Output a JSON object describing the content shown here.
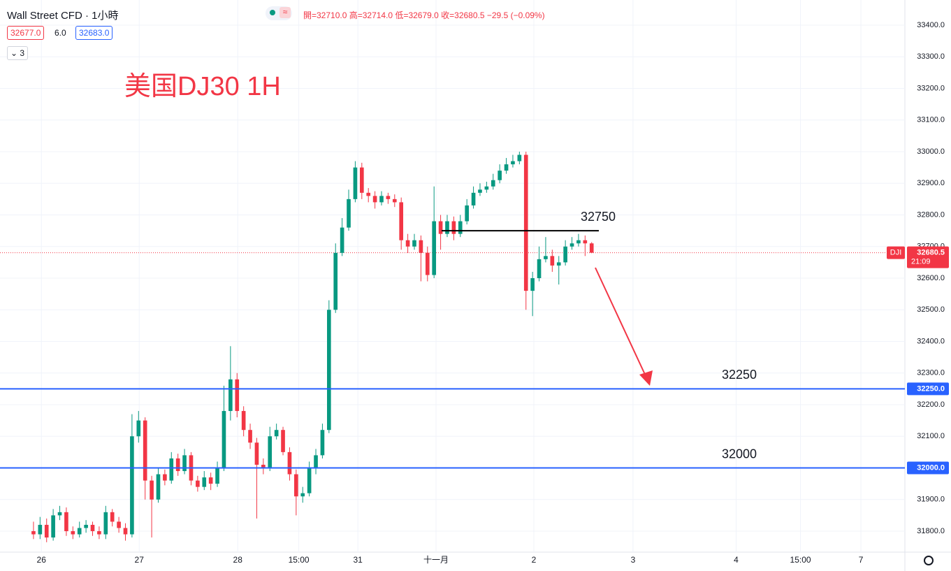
{
  "header": {
    "symbol": "Wall Street CFD · 1小時",
    "bid": "32677.0",
    "spread": "6.0",
    "ask": "32683.0",
    "indicators_count": "3",
    "ohlc": "開=32710.0 高=32714.0 低=32679.0 收=32680.5 −29.5 (−0.09%)"
  },
  "chart_data": {
    "type": "candlestick",
    "annotation": "美国DJ30 1H",
    "x": [
      0,
      1,
      2,
      3,
      4,
      5,
      6,
      7,
      8,
      9,
      10,
      11,
      12,
      13,
      14,
      15,
      16,
      17,
      18,
      19,
      20,
      21,
      22,
      23,
      24,
      25,
      26,
      27,
      28,
      29,
      30,
      31,
      32,
      33,
      34,
      35,
      36,
      37,
      38,
      39,
      40,
      41,
      42,
      43,
      44,
      45,
      46,
      47,
      48,
      49,
      50,
      51,
      52,
      53,
      54,
      55,
      56,
      57,
      58,
      59,
      60,
      61,
      62,
      63,
      64,
      65,
      66,
      67,
      68,
      69,
      70,
      71,
      72,
      73,
      74,
      75,
      76,
      77,
      78,
      79,
      80,
      81,
      82,
      83,
      84,
      85
    ],
    "open": [
      31800,
      31790,
      31820,
      31780,
      31850,
      31860,
      31800,
      31790,
      31810,
      31820,
      31800,
      31790,
      31860,
      31830,
      31810,
      31790,
      32100,
      32150,
      31960,
      31900,
      31980,
      31960,
      32030,
      31990,
      32040,
      31960,
      31940,
      31970,
      31950,
      32000,
      32180,
      32280,
      32180,
      32120,
      32080,
      32010,
      32000,
      32100,
      32120,
      32050,
      31980,
      31910,
      31920,
      32000,
      32040,
      32120,
      32500,
      32680,
      32760,
      32850,
      32950,
      32870,
      32860,
      32840,
      32860,
      32850,
      32840,
      32720,
      32700,
      32720,
      32680,
      32610,
      32780,
      32740,
      32780,
      32740,
      32780,
      32830,
      32870,
      32880,
      32890,
      32910,
      32940,
      32960,
      32970,
      32990,
      32560,
      32600,
      32660,
      32670,
      32640,
      32650,
      32700,
      32710,
      32720,
      32710
    ],
    "high": [
      31830,
      31845,
      31840,
      31870,
      31880,
      31875,
      31815,
      31830,
      31835,
      31830,
      31815,
      31880,
      31870,
      31845,
      31825,
      32170,
      32180,
      32160,
      31975,
      32000,
      31995,
      32050,
      32045,
      32060,
      32050,
      31975,
      31990,
      31985,
      32020,
      32260,
      32385,
      32300,
      32195,
      32140,
      32095,
      32030,
      32130,
      32140,
      32130,
      32065,
      31995,
      31940,
      32020,
      32060,
      32140,
      32530,
      32710,
      32790,
      32880,
      32970,
      32965,
      32885,
      32875,
      32875,
      32870,
      32865,
      32855,
      32740,
      32740,
      32735,
      32700,
      32890,
      32800,
      32800,
      32795,
      32800,
      32850,
      32890,
      32900,
      32905,
      32930,
      32960,
      32980,
      32990,
      33000,
      33000,
      32620,
      32700,
      32730,
      32690,
      32670,
      32720,
      32730,
      32740,
      32735,
      32714
    ],
    "low": [
      31775,
      31775,
      31765,
      31770,
      31835,
      31785,
      31775,
      31780,
      31795,
      31785,
      31775,
      31775,
      31815,
      31795,
      31770,
      31780,
      32080,
      31900,
      31780,
      31890,
      31945,
      31950,
      31975,
      31980,
      31945,
      31925,
      31930,
      31930,
      31940,
      31990,
      32150,
      32160,
      32100,
      32060,
      31840,
      31980,
      31990,
      32090,
      32040,
      31960,
      31850,
      31890,
      31910,
      31980,
      32030,
      32110,
      32490,
      32670,
      32750,
      32840,
      32850,
      32840,
      32820,
      32830,
      32835,
      32825,
      32690,
      32680,
      32690,
      32590,
      32590,
      32600,
      32690,
      32730,
      32720,
      32730,
      32770,
      32820,
      32860,
      32870,
      32880,
      32900,
      32930,
      32950,
      32960,
      32500,
      32480,
      32590,
      32650,
      32620,
      32580,
      32640,
      32690,
      32700,
      32670,
      32679
    ],
    "close": [
      31790,
      31820,
      31780,
      31850,
      31860,
      31800,
      31790,
      31810,
      31820,
      31800,
      31790,
      31860,
      31830,
      31810,
      31790,
      32100,
      32150,
      31960,
      31900,
      31980,
      31960,
      32030,
      31990,
      32040,
      31960,
      31940,
      31970,
      31950,
      32000,
      32180,
      32280,
      32180,
      32120,
      32080,
      32010,
      32000,
      32100,
      32120,
      32050,
      31980,
      31910,
      31920,
      32000,
      32040,
      32120,
      32500,
      32680,
      32760,
      32850,
      32950,
      32870,
      32860,
      32840,
      32860,
      32850,
      32840,
      32720,
      32700,
      32720,
      32680,
      32610,
      32780,
      32740,
      32780,
      32740,
      32780,
      32830,
      32870,
      32880,
      32890,
      32910,
      32940,
      32960,
      32970,
      32990,
      32560,
      32600,
      32660,
      32670,
      32640,
      32650,
      32700,
      32710,
      32720,
      32710,
      32680.5
    ],
    "up_color": "#089981",
    "down_color": "#f23645",
    "xlim": [
      -5.1,
      132.7
    ],
    "xticks": [
      {
        "value": 1.2,
        "label": "26"
      },
      {
        "value": 16.1,
        "label": "27"
      },
      {
        "value": 31.1,
        "label": "28"
      },
      {
        "value": 40.4,
        "label": "15:00"
      },
      {
        "value": 49.4,
        "label": "31"
      },
      {
        "value": 61.3,
        "label": "十一月"
      },
      {
        "value": 76.2,
        "label": "2"
      },
      {
        "value": 91.3,
        "label": "3"
      },
      {
        "value": 107,
        "label": "4"
      },
      {
        "value": 116.8,
        "label": "15:00"
      },
      {
        "value": 126,
        "label": "7"
      }
    ],
    "ylim": [
      31733.7,
      33479.6
    ],
    "yticks": [
      {
        "value": 31800,
        "label": "31800.0"
      },
      {
        "value": 31900,
        "label": "31900.0"
      },
      {
        "value": 32000,
        "label": "32000.0"
      },
      {
        "value": 32100,
        "label": "32100.0"
      },
      {
        "value": 32200,
        "label": "32200.0"
      },
      {
        "value": 32300,
        "label": "32300.0"
      },
      {
        "value": 32400,
        "label": "32400.0"
      },
      {
        "value": 32500,
        "label": "32500.0"
      },
      {
        "value": 32600,
        "label": "32600.0"
      },
      {
        "value": 32700,
        "label": "32700.0"
      },
      {
        "value": 32800,
        "label": "32800.0"
      },
      {
        "value": 32900,
        "label": "32900.0"
      },
      {
        "value": 33000,
        "label": "33000.0"
      },
      {
        "value": 33100,
        "label": "33100.0"
      },
      {
        "value": 33200,
        "label": "33200.0"
      },
      {
        "value": 33300,
        "label": "33300.0"
      },
      {
        "value": 33400,
        "label": "33400.0"
      }
    ],
    "grid": true,
    "levels": [
      {
        "value": 32750,
        "color": "#000000"
      },
      {
        "value": 32250,
        "color": "#2962ff",
        "axis_label": "32250.0"
      },
      {
        "value": 32000,
        "color": "#2962ff",
        "axis_label": "32000.0"
      }
    ],
    "last_price": {
      "symbol": "DJI",
      "value": 32680.5,
      "countdown": "21:09",
      "color": "#f23645"
    }
  }
}
